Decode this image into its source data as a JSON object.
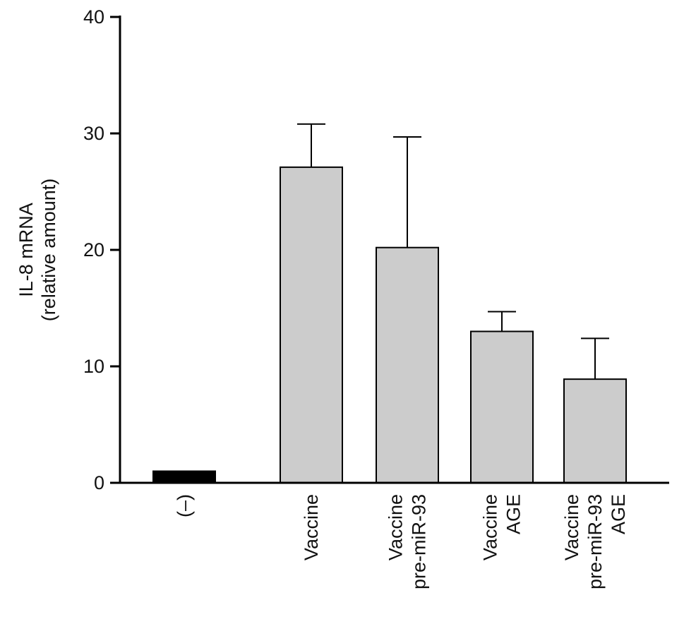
{
  "chart_data": {
    "type": "bar",
    "title": "",
    "ylabel": [
      "IL-8 mRNA",
      "(relative amount)"
    ],
    "xlabel": "",
    "ylim": [
      0,
      40
    ],
    "yticks": [
      0,
      10,
      20,
      30,
      40
    ],
    "grid": false,
    "categories": [
      {
        "lines": [
          "(–)"
        ]
      },
      {
        "lines": [
          "Vaccine"
        ]
      },
      {
        "lines": [
          "Vaccine",
          "pre-miR-93"
        ]
      },
      {
        "lines": [
          "Vaccine",
          "AGE"
        ]
      },
      {
        "lines": [
          "Vaccine",
          "pre-miR-93",
          "AGE"
        ]
      }
    ],
    "values": [
      1.0,
      27.1,
      20.2,
      13.0,
      8.9
    ],
    "errors": [
      0,
      3.7,
      9.5,
      1.7,
      3.5
    ],
    "colors": [
      "#000000",
      "#cccccc",
      "#cccccc",
      "#cccccc",
      "#cccccc"
    ]
  }
}
